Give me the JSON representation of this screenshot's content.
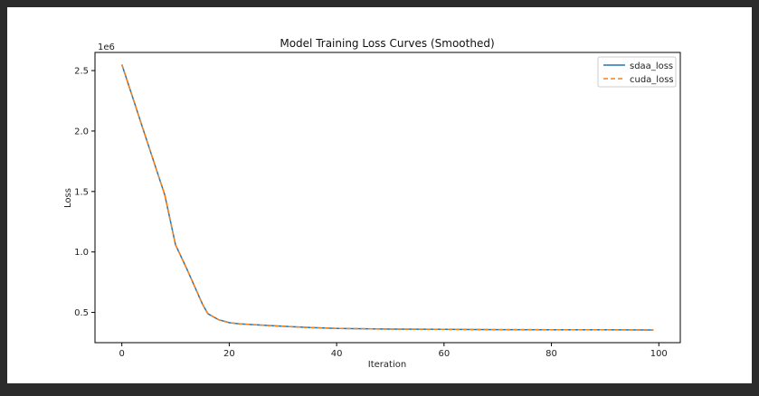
{
  "chart_data": {
    "type": "line",
    "title": "Model Training Loss Curves (Smoothed)",
    "xlabel": "Iteration",
    "ylabel": "Loss",
    "y_scale_label": "1e6",
    "xlim": [
      -5,
      104
    ],
    "ylim": [
      0.25,
      2.65
    ],
    "x_ticks": [
      0,
      20,
      40,
      60,
      80,
      100
    ],
    "x_tick_labels": [
      "0",
      "20",
      "40",
      "60",
      "80",
      "100"
    ],
    "y_ticks": [
      0.5,
      1.0,
      1.5,
      2.0,
      2.5
    ],
    "y_tick_labels": [
      "0.5",
      "1.0",
      "1.5",
      "2.0",
      "2.5"
    ],
    "grid": false,
    "legend_position": "top-right",
    "x": [
      0,
      2,
      4,
      6,
      8,
      10,
      12,
      14,
      15,
      16,
      18,
      20,
      22,
      25,
      30,
      35,
      40,
      50,
      60,
      70,
      80,
      90,
      99
    ],
    "series": [
      {
        "name": "sdaa_loss",
        "color": "#1f77b4",
        "style": "solid",
        "values": [
          2.55,
          2.28,
          2.01,
          1.74,
          1.47,
          1.06,
          0.87,
          0.67,
          0.57,
          0.49,
          0.44,
          0.415,
          0.405,
          0.397,
          0.385,
          0.375,
          0.368,
          0.362,
          0.36,
          0.358,
          0.357,
          0.356,
          0.355
        ]
      },
      {
        "name": "cuda_loss",
        "color": "#ff7f0e",
        "style": "dashed",
        "values": [
          2.55,
          2.28,
          2.01,
          1.74,
          1.47,
          1.06,
          0.87,
          0.67,
          0.57,
          0.49,
          0.44,
          0.415,
          0.405,
          0.397,
          0.385,
          0.375,
          0.368,
          0.362,
          0.36,
          0.358,
          0.357,
          0.356,
          0.355
        ]
      }
    ]
  }
}
